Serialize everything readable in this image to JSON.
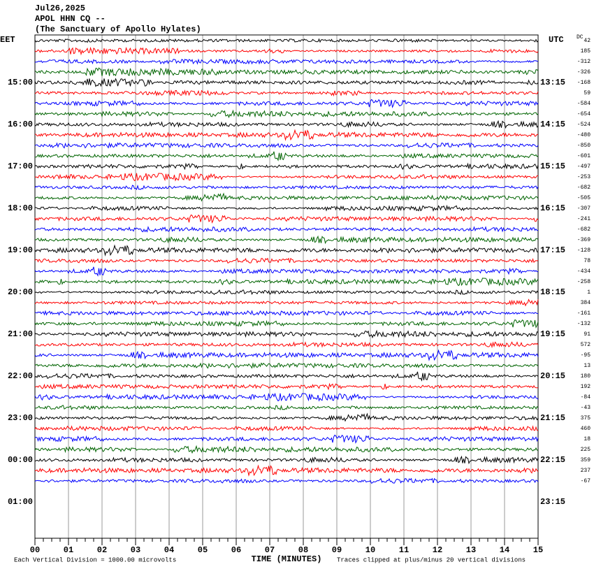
{
  "chart_data": {
    "type": "helicorder",
    "title_lines": [
      "Jul26,2025",
      "APOL HHN CQ --",
      "(The Sanctuary of Apollo Hylates)"
    ],
    "left_label": "EET",
    "right_label": "UTC",
    "dc_label": "DC",
    "left_times": [
      "15:00",
      "16:00",
      "17:00",
      "18:00",
      "19:00",
      "20:00",
      "21:00",
      "22:00",
      "23:00",
      "00:00",
      "01:00"
    ],
    "right_times": [
      "13:15",
      "14:15",
      "15:15",
      "16:15",
      "17:15",
      "18:15",
      "19:15",
      "20:15",
      "21:15",
      "22:15",
      "23:15"
    ],
    "dc_values": [
      42,
      185,
      -312,
      -326,
      -168,
      59,
      -584,
      -654,
      -524,
      -480,
      -850,
      -601,
      -497,
      -253,
      -682,
      -505,
      -307,
      -241,
      -682,
      -369,
      -128,
      78,
      -434,
      -258,
      1,
      384,
      -161,
      -132,
      91,
      572,
      -95,
      13,
      180,
      192,
      -84,
      -43,
      375,
      460,
      18,
      225,
      359,
      237,
      -67
    ],
    "colors": [
      "#000000",
      "#ff0000",
      "#0000ff",
      "#006400"
    ],
    "xlim": [
      0,
      15
    ],
    "xticks": [
      {
        "value": 0,
        "label": "00"
      },
      {
        "value": 1,
        "label": "01"
      },
      {
        "value": 2,
        "label": "02"
      },
      {
        "value": 3,
        "label": "03"
      },
      {
        "value": 4,
        "label": "04"
      },
      {
        "value": 5,
        "label": "05"
      },
      {
        "value": 6,
        "label": "06"
      },
      {
        "value": 7,
        "label": "07"
      },
      {
        "value": 8,
        "label": "08"
      },
      {
        "value": 9,
        "label": "09"
      },
      {
        "value": 10,
        "label": "10"
      },
      {
        "value": 11,
        "label": "11"
      },
      {
        "value": 12,
        "label": "12"
      },
      {
        "value": 13,
        "label": "13"
      },
      {
        "value": 14,
        "label": "14"
      },
      {
        "value": 15,
        "label": "15"
      }
    ],
    "xlabel": "TIME (MINUTES)",
    "footnote_left": "Each Vertical Division = 1000.00 microvolts",
    "footnote_right": "Traces clipped at plus/minus 20 vertical divisions",
    "grid": true
  }
}
